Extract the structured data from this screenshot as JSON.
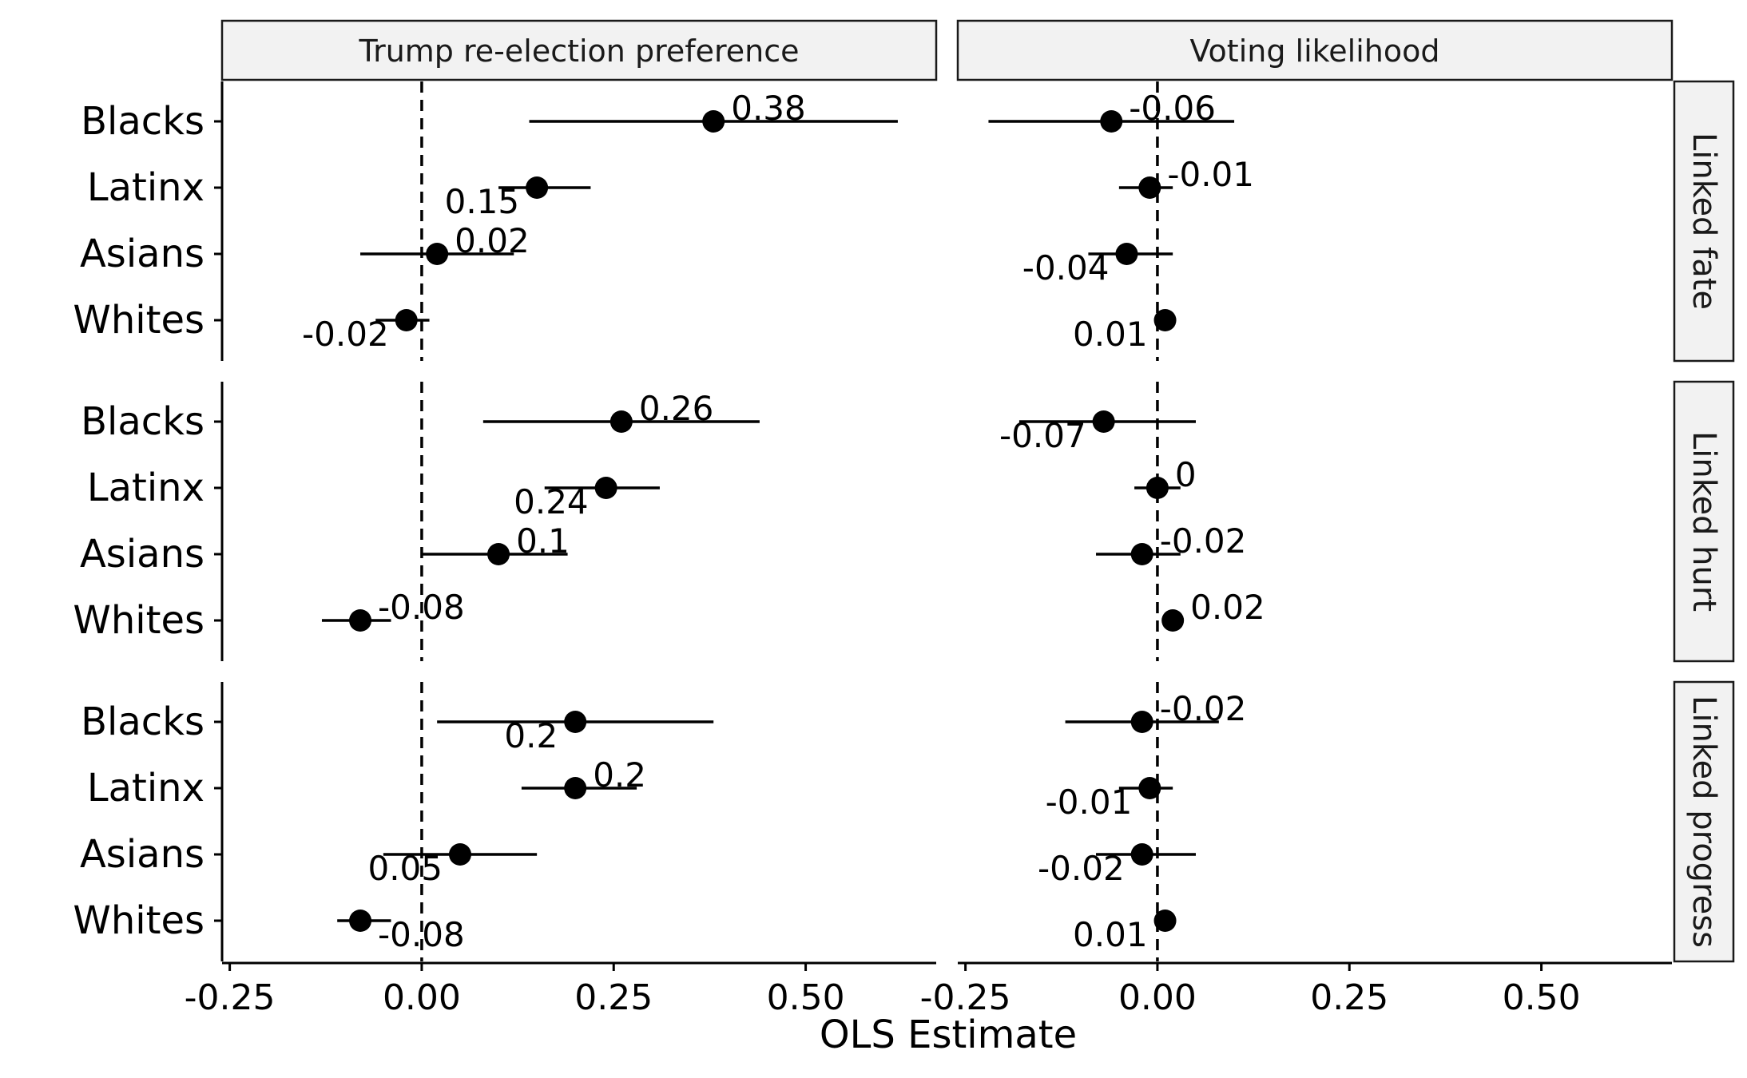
{
  "chart_data": {
    "type": "scatter",
    "subtype": "coefficient-plot-with-confidence-intervals",
    "xlabel": "OLS Estimate",
    "ylabel": "",
    "xlim": [
      -0.26,
      0.67
    ],
    "x_ticks": [
      -0.25,
      0.0,
      0.25,
      0.5
    ],
    "x_tick_labels": [
      "-0.25",
      "0.00",
      "0.25",
      "0.50"
    ],
    "reference_line_x": 0,
    "grid": false,
    "categories": [
      "Blacks",
      "Latinx",
      "Asians",
      "Whites"
    ],
    "columns": [
      "Trump re-election preference",
      "Voting likelihood"
    ],
    "rows": [
      "Linked fate",
      "Linked hurt",
      "Linked progress"
    ],
    "panels": [
      {
        "column": "Trump re-election preference",
        "row": "Linked fate",
        "points": [
          {
            "group": "Blacks",
            "estimate": 0.38,
            "ci": [
              0.14,
              0.62
            ],
            "label": "0.38",
            "label_pos": "above-right"
          },
          {
            "group": "Latinx",
            "estimate": 0.15,
            "ci": [
              0.1,
              0.22
            ],
            "label": "0.15",
            "label_pos": "below-left"
          },
          {
            "group": "Asians",
            "estimate": 0.02,
            "ci": [
              -0.08,
              0.12
            ],
            "label": "0.02",
            "label_pos": "above-right"
          },
          {
            "group": "Whites",
            "estimate": -0.02,
            "ci": [
              -0.06,
              0.01
            ],
            "label": "-0.02",
            "label_pos": "below-left"
          }
        ]
      },
      {
        "column": "Voting likelihood",
        "row": "Linked fate",
        "points": [
          {
            "group": "Blacks",
            "estimate": -0.06,
            "ci": [
              -0.22,
              0.1
            ],
            "label": "-0.06",
            "label_pos": "above-right"
          },
          {
            "group": "Latinx",
            "estimate": -0.01,
            "ci": [
              -0.05,
              0.02
            ],
            "label": "-0.01",
            "label_pos": "above-right"
          },
          {
            "group": "Asians",
            "estimate": -0.04,
            "ci": [
              -0.09,
              0.02
            ],
            "label": "-0.04",
            "label_pos": "below-left"
          },
          {
            "group": "Whites",
            "estimate": 0.01,
            "ci": [
              0.0,
              0.02
            ],
            "label": "0.01",
            "label_pos": "below-left"
          }
        ]
      },
      {
        "column": "Trump re-election preference",
        "row": "Linked hurt",
        "points": [
          {
            "group": "Blacks",
            "estimate": 0.26,
            "ci": [
              0.08,
              0.44
            ],
            "label": "0.26",
            "label_pos": "above-right"
          },
          {
            "group": "Latinx",
            "estimate": 0.24,
            "ci": [
              0.16,
              0.31
            ],
            "label": "0.24",
            "label_pos": "below-left"
          },
          {
            "group": "Asians",
            "estimate": 0.1,
            "ci": [
              0.0,
              0.19
            ],
            "label": "0.1",
            "label_pos": "above-right"
          },
          {
            "group": "Whites",
            "estimate": -0.08,
            "ci": [
              -0.13,
              -0.04
            ],
            "label": "-0.08",
            "label_pos": "above-right"
          }
        ]
      },
      {
        "column": "Voting likelihood",
        "row": "Linked hurt",
        "points": [
          {
            "group": "Blacks",
            "estimate": -0.07,
            "ci": [
              -0.18,
              0.05
            ],
            "label": "-0.07",
            "label_pos": "below-left"
          },
          {
            "group": "Latinx",
            "estimate": 0.0,
            "ci": [
              -0.03,
              0.03
            ],
            "label": "0",
            "label_pos": "above-right"
          },
          {
            "group": "Asians",
            "estimate": -0.02,
            "ci": [
              -0.08,
              0.03
            ],
            "label": "-0.02",
            "label_pos": "above-right"
          },
          {
            "group": "Whites",
            "estimate": 0.02,
            "ci": [
              0.01,
              0.03
            ],
            "label": "0.02",
            "label_pos": "above-right"
          }
        ]
      },
      {
        "column": "Trump re-election preference",
        "row": "Linked progress",
        "points": [
          {
            "group": "Blacks",
            "estimate": 0.2,
            "ci": [
              0.02,
              0.38
            ],
            "label": "0.2",
            "label_pos": "below-left"
          },
          {
            "group": "Latinx",
            "estimate": 0.2,
            "ci": [
              0.13,
              0.28
            ],
            "label": "0.2",
            "label_pos": "above-right"
          },
          {
            "group": "Asians",
            "estimate": 0.05,
            "ci": [
              -0.05,
              0.15
            ],
            "label": "0.05",
            "label_pos": "below-left"
          },
          {
            "group": "Whites",
            "estimate": -0.08,
            "ci": [
              -0.11,
              -0.04
            ],
            "label": "-0.08",
            "label_pos": "below-right"
          }
        ]
      },
      {
        "column": "Voting likelihood",
        "row": "Linked progress",
        "points": [
          {
            "group": "Blacks",
            "estimate": -0.02,
            "ci": [
              -0.12,
              0.08
            ],
            "label": "-0.02",
            "label_pos": "above-right"
          },
          {
            "group": "Latinx",
            "estimate": -0.01,
            "ci": [
              -0.05,
              0.02
            ],
            "label": "-0.01",
            "label_pos": "below-left"
          },
          {
            "group": "Asians",
            "estimate": -0.02,
            "ci": [
              -0.08,
              0.05
            ],
            "label": "-0.02",
            "label_pos": "below-left"
          },
          {
            "group": "Whites",
            "estimate": 0.01,
            "ci": [
              0.0,
              0.02
            ],
            "label": "0.01",
            "label_pos": "below-left"
          }
        ]
      }
    ]
  }
}
